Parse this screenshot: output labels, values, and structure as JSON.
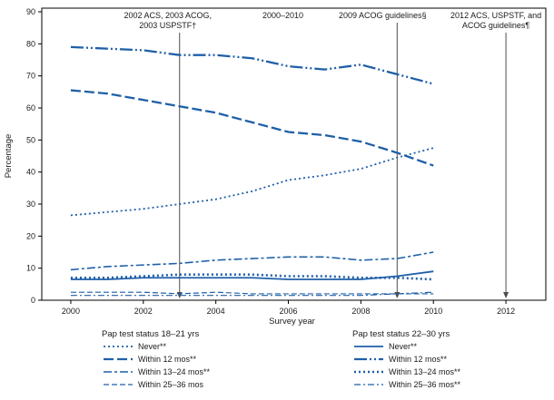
{
  "figure": {
    "background": "#ffffff"
  },
  "chart_data": {
    "type": "line",
    "title": "",
    "xlabel": "Survey year",
    "ylabel": "Percentage",
    "xlim": [
      1999.2,
      2013.1
    ],
    "ylim": [
      0,
      90
    ],
    "xticks": [
      2000,
      2002,
      2004,
      2006,
      2008,
      2010,
      2012
    ],
    "yticks": [
      0,
      10,
      20,
      30,
      40,
      50,
      60,
      70,
      80,
      90
    ],
    "x": [
      2000,
      2001,
      2002,
      2003,
      2004,
      2005,
      2006,
      2007,
      2008,
      2009,
      2010
    ],
    "line_color": "#1f5fa8",
    "axis_color": "#000000",
    "annotation_line_color": "#4d4d4d",
    "grid": "off",
    "legend_position": "bottom",
    "legend_groups": [
      {
        "label": "Pap test status 18–21 yrs",
        "series": [
          {
            "name": "Never**",
            "dash": "2 3",
            "width": 1.8,
            "values": [
              26.5,
              27.5,
              28.5,
              30,
              31.5,
              34,
              37.5,
              39,
              41,
              44.5,
              47.5
            ]
          },
          {
            "name": "Within 12 mos**",
            "dash": "11 4",
            "width": 2.3,
            "values": [
              65.5,
              64.5,
              62.5,
              60.5,
              58.5,
              55.5,
              52.5,
              51.5,
              49.5,
              46,
              42
            ]
          },
          {
            "name": "Within 13–24 mos**",
            "dash": "9 3 3 3",
            "width": 1.6,
            "values": [
              9.5,
              10.5,
              11,
              11.5,
              12.5,
              13,
              13.5,
              13.5,
              12.5,
              13,
              15
            ]
          },
          {
            "name": "Within 25–36 mos",
            "dash": "6 3",
            "width": 1.2,
            "values": [
              2.5,
              2.5,
              2.5,
              2,
              2.5,
              2,
              2,
              2,
              2,
              2,
              2
            ]
          }
        ]
      },
      {
        "label": "Pap test status 22–30 yrs",
        "series": [
          {
            "name": "Never**",
            "dash": "",
            "width": 1.8,
            "values": [
              6.5,
              6.5,
              7,
              7,
              7,
              7,
              6.5,
              6.5,
              6.5,
              7.5,
              9
            ]
          },
          {
            "name": "Within 12 mos**",
            "dash": "14 3 2 3 2 3",
            "width": 2.3,
            "values": [
              79,
              78.5,
              78,
              76.5,
              76.5,
              75.5,
              73,
              72,
              73.5,
              70.5,
              67.5
            ]
          },
          {
            "name": "Within 13–24 mos**",
            "dash": "2 3",
            "width": 2.6,
            "values": [
              7,
              7,
              7.5,
              8,
              8,
              8,
              7.5,
              7.5,
              7,
              7,
              6.5
            ]
          },
          {
            "name": "Within 25–36 mos**",
            "dash": "7 3 2 3",
            "width": 1.2,
            "values": [
              1.5,
              1.5,
              1.5,
              1.5,
              1.5,
              1.5,
              1.5,
              1.5,
              1.5,
              2,
              2.5
            ]
          }
        ]
      }
    ],
    "annotations": [
      {
        "text": "2002 ACS, 2003 ACOG,\n2003 USPSTF†",
        "x": 2003,
        "text_dx": -13,
        "line": true
      },
      {
        "text": "2000–2010",
        "x": 2005.85,
        "text_dx": 0,
        "line": false
      },
      {
        "text": "2009 ACOG guidelines§",
        "x": 2009,
        "text_dx": -16,
        "line": true
      },
      {
        "text": "2012 ACS, USPSTF, and\nACOG guidelines¶",
        "x": 2012,
        "text_dx": -11,
        "line": true
      }
    ]
  }
}
